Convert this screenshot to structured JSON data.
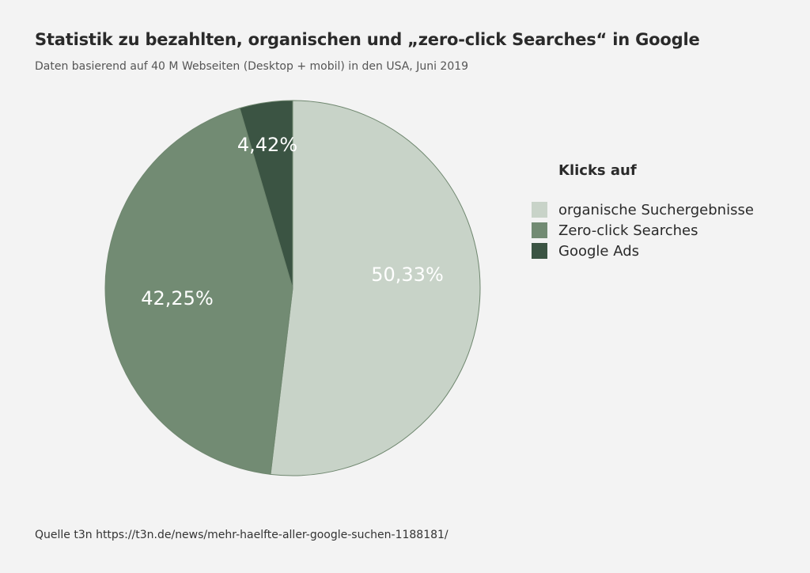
{
  "header": {
    "title": "Statistik zu bezahlten, organischen und „zero-click Searches“ in Google",
    "subtitle": "Daten basierend auf 40 M Webseiten (Desktop + mobil) in den USA, Juni 2019"
  },
  "chart_data": {
    "type": "pie",
    "title": "Statistik zu bezahlten, organischen und „zero-click Searches“ in Google",
    "subtitle": "Daten basierend auf 40 M Webseiten (Desktop + mobil) in den USA, Juni 2019",
    "legend_title": "Klicks auf",
    "legend_position": "right",
    "start_angle": "top",
    "direction": "clockwise",
    "slices": [
      {
        "name": "organische Suchergebnisse",
        "value": 50.33,
        "label": "50,33%",
        "color": "#c8d3c8"
      },
      {
        "name": "Zero-click Searches",
        "value": 42.25,
        "label": "42,25%",
        "color": "#728b73"
      },
      {
        "name": "Google Ads",
        "value": 4.42,
        "label": "4,42%",
        "color": "#3b5443"
      }
    ],
    "stroke_color": "#6f876f"
  },
  "footer": {
    "source": "Quelle t3n https://t3n.de/news/mehr-haelfte-aller-google-suchen-1188181/"
  }
}
